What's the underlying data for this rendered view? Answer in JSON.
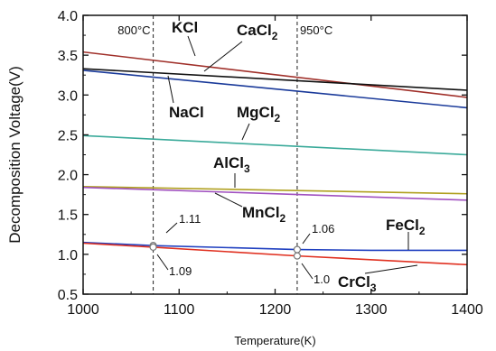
{
  "chart_data": {
    "type": "line",
    "xlabel": "Temperature(K)",
    "ylabel": "Decomposition Voltage(V)",
    "xlim": [
      1000,
      1400
    ],
    "ylim": [
      0.5,
      4.0
    ],
    "xticks": [
      "1000",
      "1100",
      "1200",
      "1300",
      "1400"
    ],
    "yticks": [
      "0.5",
      "1.0",
      "1.5",
      "2.0",
      "2.5",
      "3.0",
      "3.5",
      "4.0"
    ],
    "vlines": [
      {
        "x": 1073,
        "label": "800°C"
      },
      {
        "x": 1223,
        "label": "950°C"
      }
    ],
    "series": [
      {
        "name": "KCl",
        "color": "#a0302a",
        "x": [
          1000,
          1400
        ],
        "y": [
          3.54,
          2.97
        ]
      },
      {
        "name": "CaCl2",
        "color": "#111111",
        "x": [
          1000,
          1400
        ],
        "y": [
          3.33,
          3.06
        ]
      },
      {
        "name": "NaCl",
        "color": "#1a3a9a",
        "x": [
          1000,
          1400
        ],
        "y": [
          3.31,
          2.84
        ]
      },
      {
        "name": "MgCl2",
        "color": "#3aaa9a",
        "x": [
          1000,
          1400
        ],
        "y": [
          2.49,
          2.25
        ]
      },
      {
        "name": "AlCl3",
        "color": "#b0a020",
        "x": [
          1000,
          1400
        ],
        "y": [
          1.85,
          1.76
        ]
      },
      {
        "name": "MnCl2",
        "color": "#a050c0",
        "x": [
          1000,
          1400
        ],
        "y": [
          1.84,
          1.68
        ]
      },
      {
        "name": "FeCl2",
        "color": "#2040c0",
        "x": [
          1000,
          1073,
          1223,
          1300,
          1400
        ],
        "y": [
          1.15,
          1.11,
          1.06,
          1.05,
          1.05
        ]
      },
      {
        "name": "CrCl3",
        "color": "#e03020",
        "x": [
          1000,
          1073,
          1223,
          1400
        ],
        "y": [
          1.14,
          1.09,
          0.98,
          0.87
        ]
      }
    ],
    "labels": [
      {
        "text": "KCl",
        "sub": ""
      },
      {
        "text": "CaCl",
        "sub": "2"
      },
      {
        "text": "NaCl",
        "sub": ""
      },
      {
        "text": "MgCl",
        "sub": "2"
      },
      {
        "text": "AlCl",
        "sub": "3"
      },
      {
        "text": "MnCl",
        "sub": "2"
      },
      {
        "text": "FeCl",
        "sub": "2"
      },
      {
        "text": "CrCl",
        "sub": "3"
      }
    ],
    "annotations": [
      {
        "text": "1.11",
        "x": 1073,
        "y": 1.11
      },
      {
        "text": "1.09",
        "x": 1073,
        "y": 1.09
      },
      {
        "text": "1.06",
        "x": 1223,
        "y": 1.06
      },
      {
        "text": "1.0",
        "x": 1223,
        "y": 0.98
      }
    ]
  }
}
